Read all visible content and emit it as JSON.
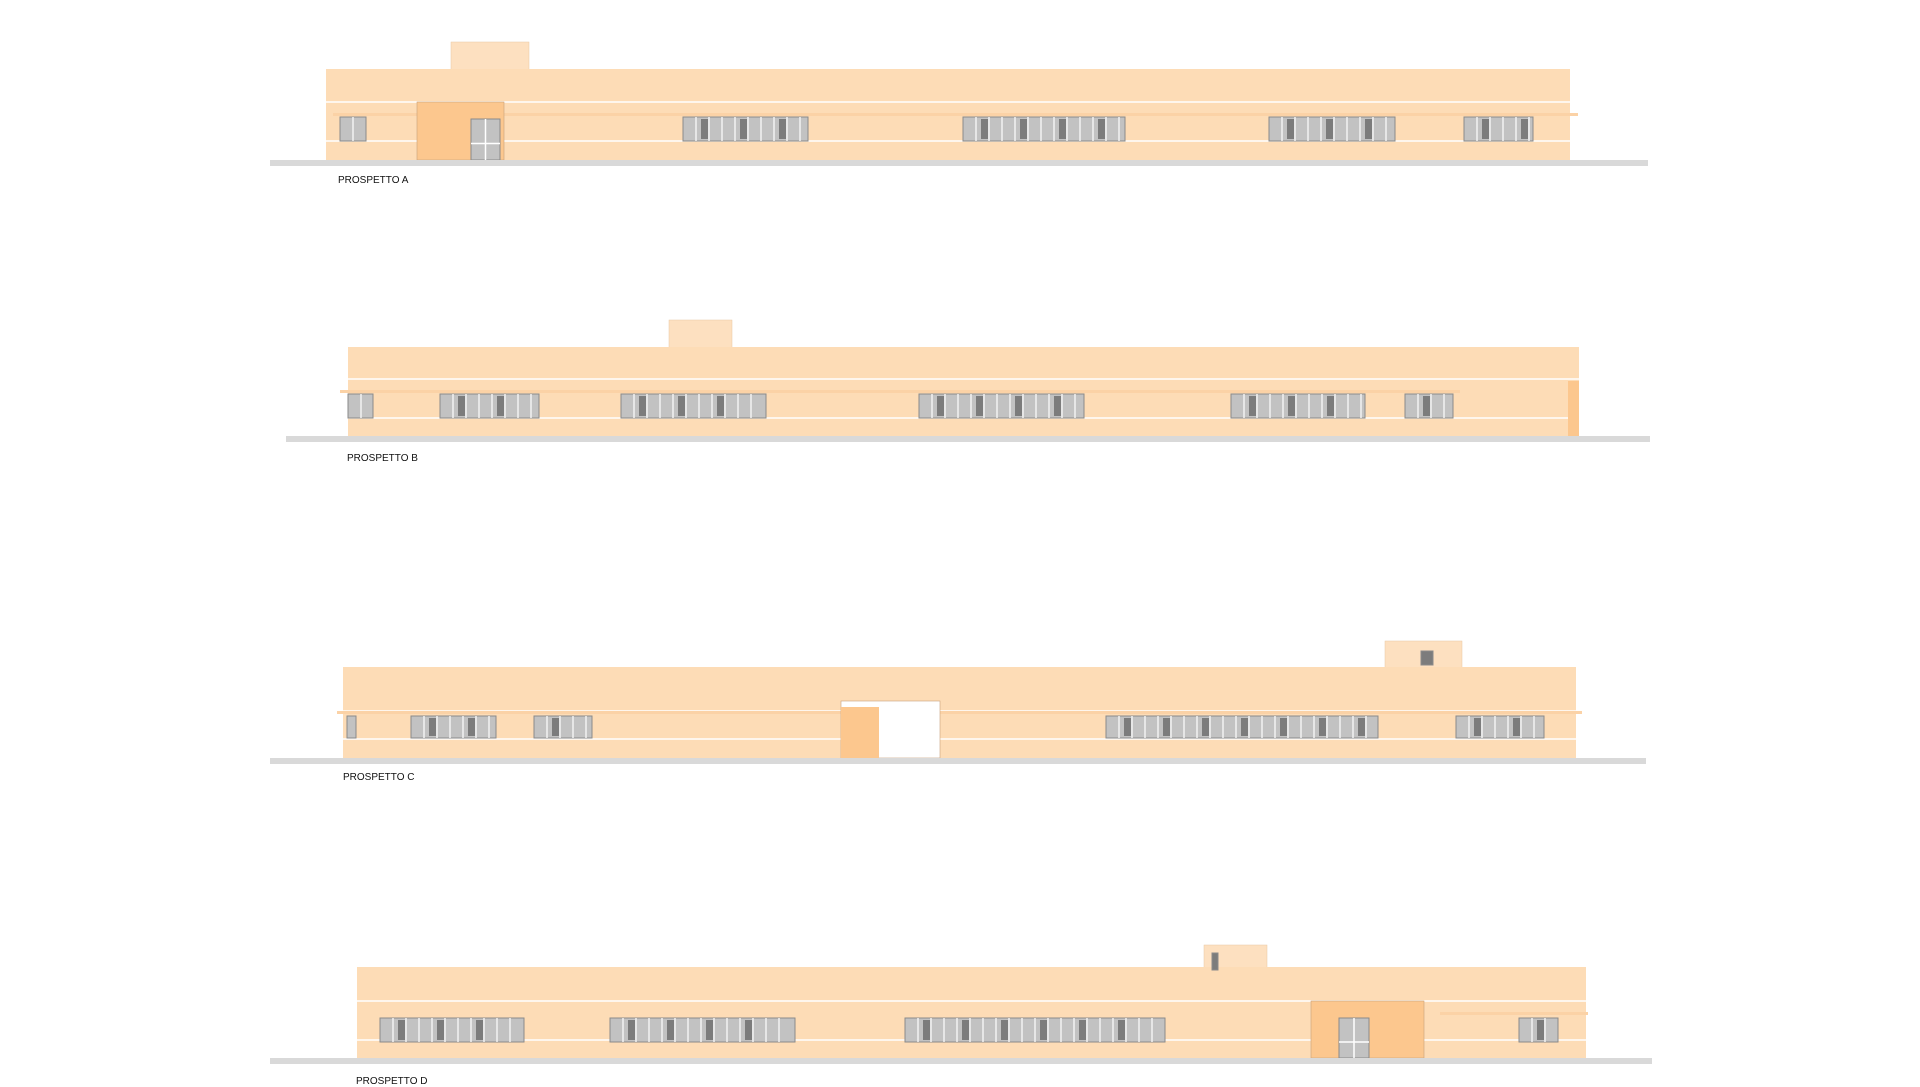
{
  "elevations": [
    {
      "title": "PROSPETTO A"
    },
    {
      "title": "PROSPETTO B"
    },
    {
      "title": "PROSPETTO C"
    },
    {
      "title": "PROSPETTO D"
    }
  ],
  "colors": {
    "wall": "#fddcb6",
    "tower": "#fde0c0",
    "entrance": "#fcc78e",
    "ground": "#d9d9d9",
    "glass": "#c2c2c2",
    "glass_dark": "#7c7c7c",
    "frame": "#8a8a8a"
  }
}
